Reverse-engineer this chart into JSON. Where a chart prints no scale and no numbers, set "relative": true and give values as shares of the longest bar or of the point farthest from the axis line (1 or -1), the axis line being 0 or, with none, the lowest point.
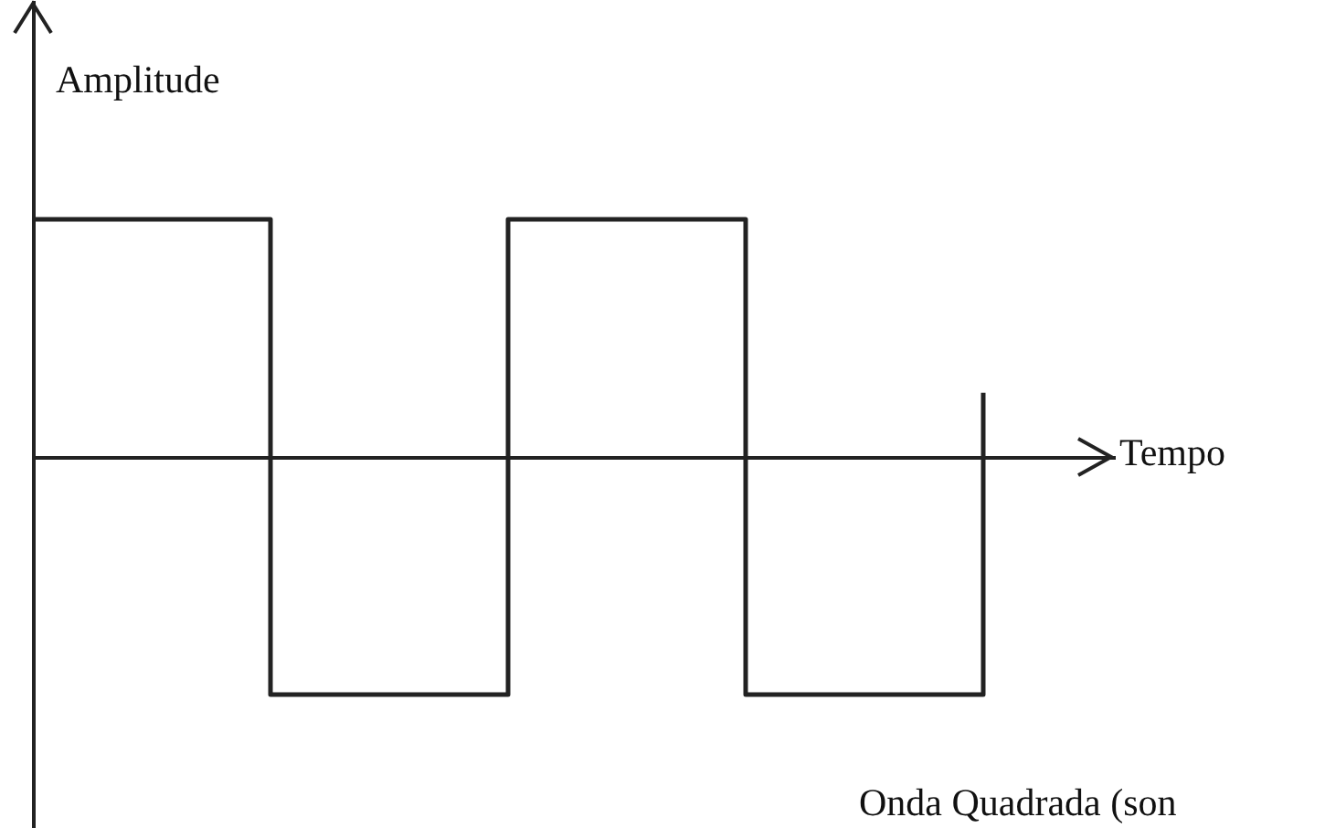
{
  "chart_data": {
    "type": "step",
    "relative": true,
    "xlabel": "Tempo",
    "ylabel": "Amplitude",
    "annotations": [
      "Onda Quadrada (son"
    ],
    "categories": [
      null,
      null,
      null,
      null,
      null
    ],
    "series": [
      {
        "color": "#222222",
        "values": [
          1,
          -1,
          1,
          -1,
          0.27
        ]
      }
    ]
  }
}
